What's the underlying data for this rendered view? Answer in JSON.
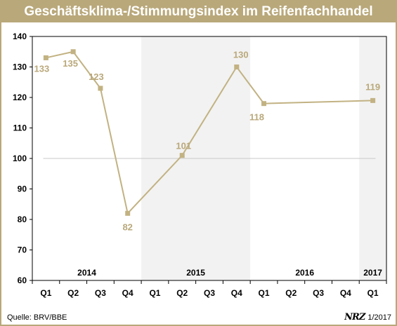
{
  "chart_data": {
    "type": "line",
    "title": "Geschäftsklima-/Stimmungsindex im Reifenfachhandel",
    "categories": [
      "Q1",
      "Q2",
      "Q3",
      "Q4",
      "Q1",
      "Q2",
      "Q3",
      "Q4",
      "Q1",
      "Q2",
      "Q3",
      "Q4",
      "Q1"
    ],
    "years": [
      "2014",
      "2015",
      "2016",
      "2017"
    ],
    "series": [
      {
        "values": [
          133,
          135,
          123,
          82,
          null,
          101,
          null,
          130,
          118,
          null,
          null,
          null,
          119
        ]
      }
    ],
    "reference_line": 100,
    "ylim": [
      60,
      140
    ],
    "yticks": [
      60,
      70,
      80,
      90,
      100,
      110,
      120,
      130,
      140
    ],
    "xlabel": "",
    "ylabel": "",
    "grid": false,
    "colors": {
      "line": "#c2b282",
      "label": "#b9a87a",
      "shade": "#f2f2f2",
      "frame": "#b9a87a"
    }
  },
  "footer": {
    "source": "Quelle: BRV/BBE",
    "logo": "NRZ",
    "edition": "1/2017"
  }
}
